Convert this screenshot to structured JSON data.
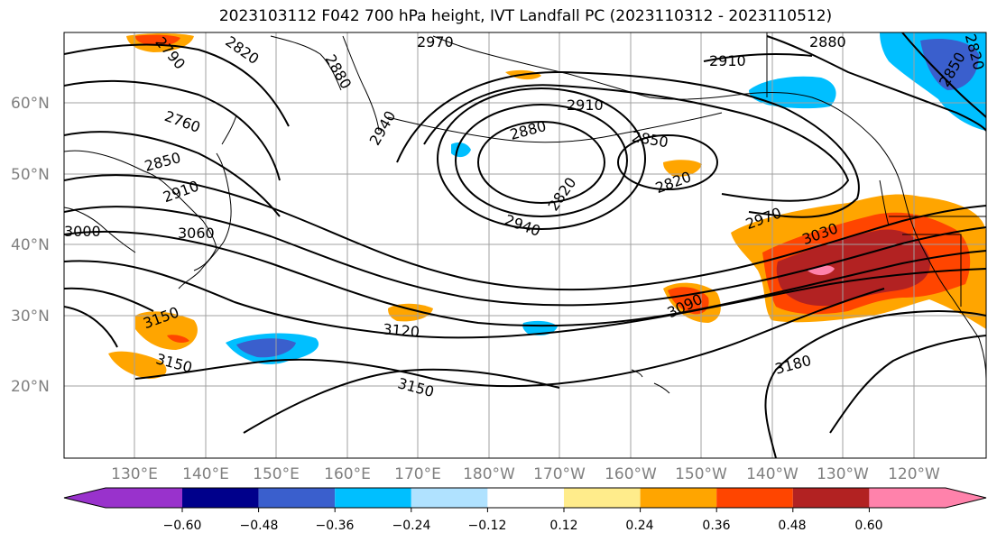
{
  "title": "2023103112 F042 700 hPa height, IVT Landfall PC (2023110312 - 2023110512)",
  "lat_labels": [
    "60°N",
    "50°N",
    "40°N",
    "30°N",
    "20°N"
  ],
  "lon_labels": [
    "130°E",
    "140°E",
    "150°E",
    "160°E",
    "170°E",
    "180°W",
    "170°W",
    "160°W",
    "150°W",
    "140°W",
    "130°W",
    "120°W"
  ],
  "contour_labels": [
    "2790",
    "2820",
    "2880",
    "2970",
    "2880",
    "2910",
    "2760",
    "2940",
    "2910",
    "2850",
    "2880",
    "2850",
    "2910",
    "2820",
    "2820",
    "2970",
    "3030",
    "3000",
    "3060",
    "2940",
    "3150",
    "3090",
    "3120",
    "3180",
    "3150",
    "3150",
    "2820",
    "2850"
  ],
  "colorbar": {
    "ticks": [
      "−0.60",
      "−0.48",
      "−0.36",
      "−0.24",
      "−0.12",
      "0.12",
      "0.24",
      "0.36",
      "0.48",
      "0.60"
    ],
    "colors": [
      "#9932cc",
      "#00008b",
      "#3a5fcd",
      "#00bfff",
      "#b0e2ff",
      "#ffffff",
      "#ffec8b",
      "#ffa500",
      "#ff4500",
      "#b22222",
      "#ff82ab"
    ]
  },
  "colors": {
    "positive_high": "#b22222",
    "positive_mid": "#ff4500",
    "positive_low": "#ffa500",
    "negative": "#00bfff"
  }
}
